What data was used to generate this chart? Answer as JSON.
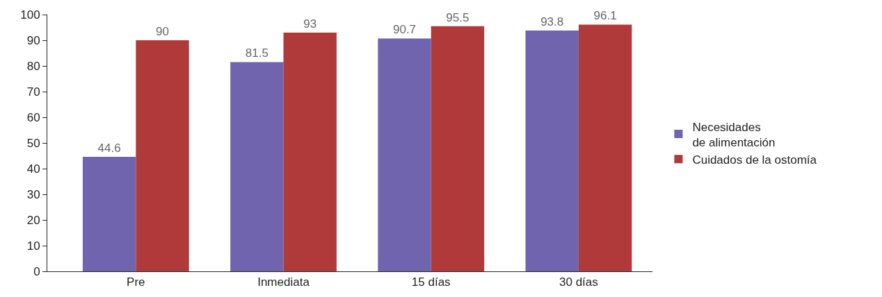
{
  "chart_data": {
    "type": "bar",
    "categories": [
      "Pre",
      "Inmediata",
      "15 días",
      "30 días"
    ],
    "series": [
      {
        "name": "Necesidades\nde alimentación",
        "color": "#7064ae",
        "values": [
          44.6,
          81.5,
          90.7,
          93.8
        ]
      },
      {
        "name": "Cuidados de la ostomía",
        "color": "#b03a3a",
        "values": [
          90,
          93,
          95.5,
          96.1
        ]
      }
    ],
    "ylim": [
      0,
      100
    ],
    "yticks": [
      0,
      10,
      20,
      30,
      40,
      50,
      60,
      70,
      80,
      90,
      100
    ],
    "data_labels": true,
    "legend": "right"
  }
}
